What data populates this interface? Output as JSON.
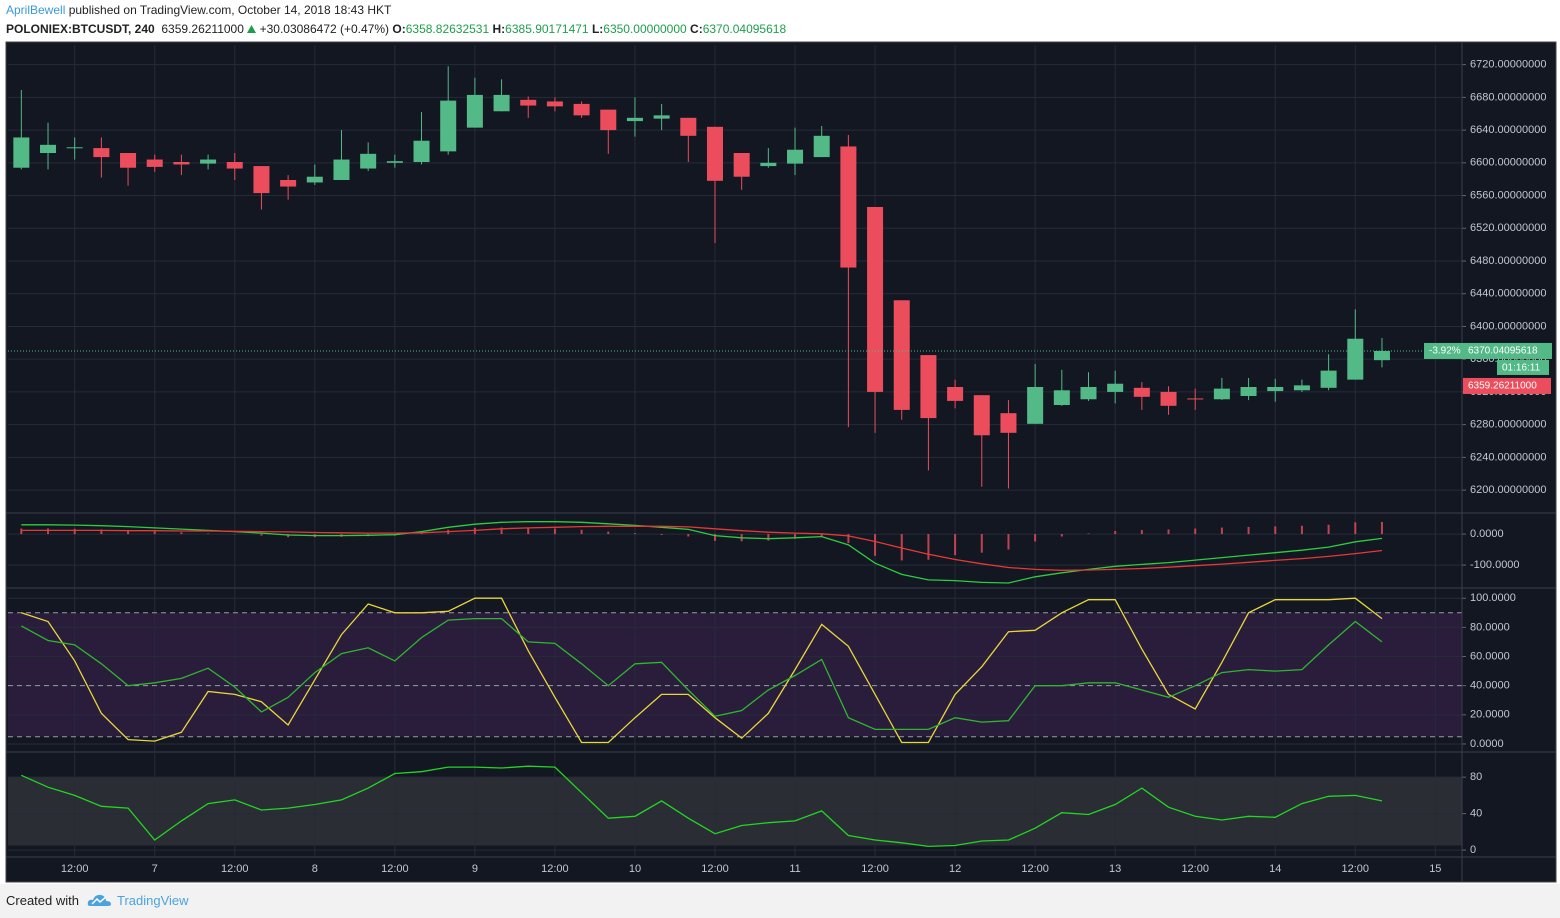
{
  "header": {
    "author": "AprilBewell",
    "published": "published on TradingView.com, October 14, 2018 18:43 HKT",
    "symbol": "POLONIEX:BTCUSDT, 240",
    "last": "6359.26211000",
    "change": "+30.03086472 (+0.47%)",
    "open_label": "O:",
    "open": "6358.82632531",
    "high_label": "H:",
    "high": "6385.90171471",
    "low_label": "L:",
    "low": "6350.00000000",
    "close_label": "C:",
    "close": "6370.04095618"
  },
  "footer": {
    "created": "Created with",
    "brand": "TradingView"
  },
  "chart_data": [
    {
      "type": "candlestick",
      "up_color": "#53b987",
      "down_color": "#eb4d5c",
      "grid": true,
      "open": [
        6594,
        6612,
        6618,
        6618,
        6612,
        6604,
        6601,
        6599,
        6601,
        6596,
        6579,
        6576,
        6579,
        6593,
        6600,
        6601,
        6614,
        6643,
        6663,
        6677,
        6675,
        6672,
        6665,
        6651,
        6654,
        6655,
        6644,
        6612,
        6596,
        6599,
        6607,
        6620,
        6546,
        6432,
        6365,
        6326,
        6316,
        6294,
        6281,
        6304,
        6311,
        6320,
        6325,
        6320,
        6312,
        6311,
        6315,
        6321,
        6322,
        6325,
        6335,
        6358.8
      ],
      "high": [
        6689,
        6649,
        6631,
        6631,
        6612,
        6610,
        6610,
        6610,
        6612,
        6596,
        6585,
        6598,
        6640,
        6625,
        6610,
        6662,
        6718,
        6704,
        6702,
        6681,
        6680,
        6675,
        6665,
        6680,
        6672,
        6655,
        6644,
        6612,
        6618,
        6643,
        6645,
        6634,
        6546,
        6432,
        6365,
        6335,
        6316,
        6310,
        6354,
        6347,
        6344,
        6346,
        6332,
        6327,
        6324,
        6337,
        6337,
        6336,
        6335,
        6366,
        6421,
        6385.9
      ],
      "low": [
        6592,
        6592,
        6604,
        6582,
        6572,
        6589,
        6585,
        6592,
        6579,
        6543,
        6555,
        6573,
        6579,
        6590,
        6594,
        6598,
        6610,
        6643,
        6663,
        6655,
        6663,
        6655,
        6611,
        6632,
        6640,
        6601,
        6502,
        6567,
        6594,
        6585,
        6607,
        6277,
        6270,
        6286,
        6224,
        6300,
        6204,
        6202,
        6281,
        6303,
        6309,
        6306,
        6298,
        6292,
        6298,
        6310,
        6310,
        6308,
        6320,
        6322,
        6335,
        6350
      ],
      "close": [
        6631,
        6622,
        6619,
        6607,
        6594,
        6595,
        6598,
        6604,
        6593,
        6563,
        6571,
        6583,
        6604,
        6611,
        6602,
        6627,
        6676,
        6683,
        6683,
        6670,
        6669,
        6658,
        6640,
        6655,
        6658,
        6633,
        6578,
        6583,
        6600,
        6616,
        6633,
        6472,
        6320,
        6298,
        6288,
        6309,
        6267,
        6270,
        6326,
        6322,
        6326,
        6330,
        6314,
        6303,
        6311,
        6324,
        6326,
        6326,
        6328,
        6346,
        6385,
        6370.04
      ],
      "xlim": [
        -0.5,
        54
      ],
      "xticks": [
        {
          "value": 2,
          "label": "12:00"
        },
        {
          "value": 5,
          "label": "7"
        },
        {
          "value": 8,
          "label": "12:00"
        },
        {
          "value": 11,
          "label": "8"
        },
        {
          "value": 14,
          "label": "12:00"
        },
        {
          "value": 17,
          "label": "9"
        },
        {
          "value": 20,
          "label": "12:00"
        },
        {
          "value": 23,
          "label": "10"
        },
        {
          "value": 26,
          "label": "12:00"
        },
        {
          "value": 29,
          "label": "11"
        },
        {
          "value": 32,
          "label": "12:00"
        },
        {
          "value": 35,
          "label": "12"
        },
        {
          "value": 38,
          "label": "12:00"
        },
        {
          "value": 41,
          "label": "13"
        },
        {
          "value": 44,
          "label": "12:00"
        },
        {
          "value": 47,
          "label": "14"
        },
        {
          "value": 50,
          "label": "12:00"
        },
        {
          "value": 53,
          "label": "15"
        }
      ],
      "ylim": [
        6172,
        6744
      ],
      "yticks": [
        {
          "value": 6200,
          "label": "6200.00000000"
        },
        {
          "value": 6240,
          "label": "6240.00000000"
        },
        {
          "value": 6280,
          "label": "6280.00000000"
        },
        {
          "value": 6320,
          "label": "6320.00000000"
        },
        {
          "value": 6360,
          "label": "6360.00000000"
        },
        {
          "value": 6400,
          "label": "6400.00000000"
        },
        {
          "value": 6440,
          "label": "6440.00000000"
        },
        {
          "value": 6480,
          "label": "6480.00000000"
        },
        {
          "value": 6520,
          "label": "6520.00000000"
        },
        {
          "value": 6560,
          "label": "6560.00000000"
        },
        {
          "value": 6600,
          "label": "6600.00000000"
        },
        {
          "value": 6640,
          "label": "6640.00000000"
        },
        {
          "value": 6680,
          "label": "6680.00000000"
        },
        {
          "value": 6720,
          "label": "6720.00000000"
        }
      ],
      "last_price": {
        "value": 6370.04095618,
        "label": "6370.04095618"
      },
      "change_tag": "-3.92%",
      "countdown": "01:16:11",
      "bid_tag": {
        "value": 6359.26211,
        "label": "6359.26211000"
      }
    },
    {
      "type": "macd",
      "grid": true,
      "ylim": [
        -174,
        68
      ],
      "yticks": [
        {
          "value": 0,
          "label": "0.0000"
        },
        {
          "value": -100,
          "label": "-100.0000"
        }
      ],
      "series": [
        {
          "color": "#2ecc40",
          "values": [
            30,
            30,
            29,
            27,
            24,
            20,
            16,
            12,
            8,
            3,
            -3,
            -5,
            -5,
            -4,
            -2,
            8,
            22,
            32,
            38,
            40,
            40,
            38,
            33,
            28,
            22,
            15,
            -5,
            -12,
            -15,
            -12,
            -8,
            -35,
            -94,
            -130,
            -148,
            -150,
            -156,
            -158,
            -138,
            -125,
            -114,
            -104,
            -98,
            -92,
            -84,
            -76,
            -68,
            -60,
            -52,
            -42,
            -25,
            -14
          ]
        },
        {
          "color": "#e53935",
          "values": [
            12,
            12,
            12,
            12,
            11,
            11,
            10,
            10,
            9,
            8,
            7,
            5,
            4,
            3,
            3,
            4,
            8,
            12,
            17,
            20,
            22,
            24,
            25,
            25,
            25,
            23,
            17,
            11,
            6,
            3,
            1,
            -6,
            -24,
            -45,
            -65,
            -82,
            -96,
            -108,
            -114,
            -117,
            -116,
            -114,
            -111,
            -107,
            -102,
            -97,
            -91,
            -85,
            -79,
            -72,
            -63,
            -53
          ]
        }
      ],
      "histogram": {
        "color": "#eb4d5c",
        "values": [
          18,
          18,
          17,
          15,
          13,
          9,
          6,
          2,
          -1,
          -5,
          -10,
          -10,
          -9,
          -7,
          -5,
          4,
          14,
          20,
          21,
          20,
          18,
          14,
          8,
          3,
          -3,
          -8,
          -22,
          -23,
          -21,
          -15,
          -9,
          -29,
          -70,
          -85,
          -83,
          -68,
          -60,
          -50,
          -24,
          -8,
          2,
          10,
          13,
          15,
          18,
          21,
          23,
          25,
          27,
          30,
          38,
          39
        ]
      }
    },
    {
      "type": "line",
      "grid": true,
      "ylim": [
        -5.5,
        107
      ],
      "yticks": [
        {
          "value": 0,
          "label": "0.0000"
        },
        {
          "value": 20,
          "label": "20.0000"
        },
        {
          "value": 40,
          "label": "40.0000"
        },
        {
          "value": 60,
          "label": "60.0000"
        },
        {
          "value": 80,
          "label": "80.0000"
        },
        {
          "value": 100,
          "label": "100.0000"
        }
      ],
      "hlines": [
        90,
        40,
        5
      ],
      "band": [
        5,
        90
      ],
      "band_color": "#2a1d3c",
      "series": [
        {
          "color": "#e8d63a",
          "values": [
            90,
            84,
            57,
            21,
            3,
            2,
            8,
            36,
            34,
            29,
            13,
            44,
            75,
            96,
            90,
            90,
            91,
            100,
            100,
            64,
            32,
            1,
            1,
            18,
            34,
            34,
            18,
            4,
            21,
            51,
            82,
            67,
            34,
            1,
            1,
            34,
            53,
            77,
            78,
            90,
            99,
            99,
            65,
            34,
            24,
            56,
            90,
            99,
            99,
            99,
            100,
            86
          ]
        },
        {
          "color": "#2fb52f",
          "values": [
            81,
            71,
            68,
            55,
            40,
            42,
            45,
            52,
            39,
            22,
            32,
            49,
            62,
            66,
            57,
            73,
            85,
            86,
            86,
            70,
            69,
            55,
            40,
            55,
            56,
            37,
            19,
            23,
            37,
            47,
            58,
            18,
            10,
            10,
            10,
            18,
            15,
            16,
            40,
            40,
            42,
            42,
            37,
            32,
            40,
            49,
            51,
            50,
            51,
            68,
            84,
            70
          ]
        }
      ]
    },
    {
      "type": "line",
      "grid": true,
      "ylim": [
        -7.6,
        107.6
      ],
      "yticks": [
        0,
        40,
        80
      ],
      "band": [
        5,
        80
      ],
      "band_color": "#2b2d35",
      "series": [
        {
          "color": "#22d622",
          "values": [
            82,
            69,
            60,
            48,
            46,
            11,
            32,
            51,
            55,
            44,
            46,
            50,
            55,
            68,
            84,
            86,
            91,
            91,
            90,
            92,
            91,
            63,
            35,
            37,
            54,
            35,
            18,
            27,
            30,
            32,
            43,
            16,
            11,
            8,
            4,
            5,
            10,
            11,
            24,
            41,
            39,
            50,
            68,
            47,
            37,
            33,
            37,
            36,
            51,
            59,
            60,
            54
          ]
        }
      ]
    }
  ]
}
